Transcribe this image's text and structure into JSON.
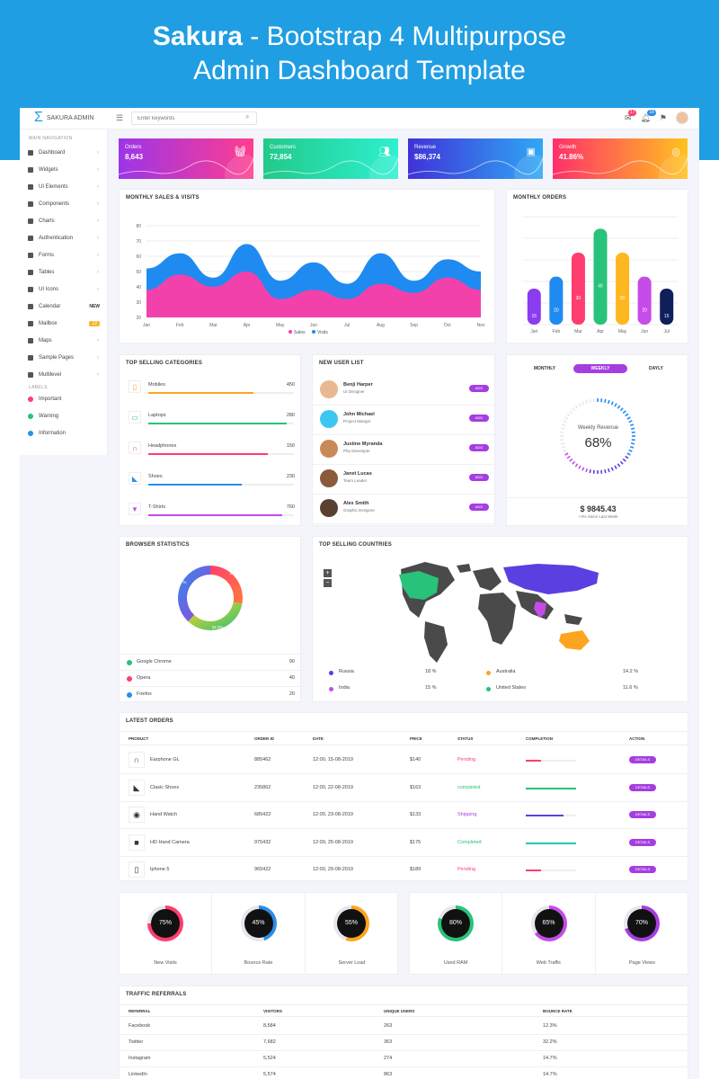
{
  "banner": {
    "title_bold": "Sakura",
    "title_rest": " - Bootstrap 4 Multipurpose",
    "title_line2": "Admin Dashboard Template"
  },
  "topbar": {
    "brand": "SAKURA ADMIN",
    "search_placeholder": "Enter keywords",
    "mail_badge": "17",
    "bell_badge": "16"
  },
  "sidebar": {
    "section_main": "MAIN NAVIGATION",
    "items": [
      {
        "label": "Dashboard",
        "icon": "home-icon",
        "arrow": "‹"
      },
      {
        "label": "Widgets",
        "icon": "widgets-icon",
        "arrow": "‹"
      },
      {
        "label": "UI Elements",
        "icon": "ui-icon",
        "arrow": "‹"
      },
      {
        "label": "Components",
        "icon": "components-icon",
        "arrow": "‹"
      },
      {
        "label": "Charts",
        "icon": "chart-icon",
        "arrow": "‹"
      },
      {
        "label": "Authentication",
        "icon": "lock-icon",
        "arrow": "‹"
      },
      {
        "label": "Forms",
        "icon": "forms-icon",
        "arrow": "‹"
      },
      {
        "label": "Tables",
        "icon": "table-icon",
        "arrow": "‹"
      },
      {
        "label": "UI Icons",
        "icon": "icons-icon",
        "arrow": "‹"
      },
      {
        "label": "Calendar",
        "icon": "calendar-icon",
        "tag": "NEW"
      },
      {
        "label": "Mailbox",
        "icon": "mail-icon",
        "count": "12"
      },
      {
        "label": "Maps",
        "icon": "map-icon",
        "arrow": "‹"
      },
      {
        "label": "Sample Pages",
        "icon": "pages-icon",
        "arrow": "‹"
      },
      {
        "label": "Multilevel",
        "icon": "share-icon",
        "arrow": "‹"
      }
    ],
    "section_labels": "LABELS",
    "labels": [
      {
        "label": "Important",
        "color": "#ff3d6e"
      },
      {
        "label": "Warning",
        "color": "#29c27a"
      },
      {
        "label": "Information",
        "color": "#2c8de6"
      }
    ]
  },
  "stats": [
    {
      "label": "Orders",
      "value": "8,643",
      "icon": "basket-icon",
      "from": "#9b35e8",
      "to": "#ff3d8f"
    },
    {
      "label": "Customers",
      "value": "72,854",
      "icon": "users-icon",
      "from": "#22c98a",
      "to": "#2ef0d0"
    },
    {
      "label": "Revenue",
      "value": "$86,374",
      "icon": "wallet-icon",
      "from": "#4032d8",
      "to": "#2fa8f5"
    },
    {
      "label": "Growth",
      "value": "41.86%",
      "icon": "growth-icon",
      "from": "#ff2f6b",
      "to": "#ffc21f"
    }
  ],
  "sales_chart": {
    "title": "MONTHLY SALES & VISITS",
    "legend": [
      "Sales",
      "Visits"
    ]
  },
  "chart_data": [
    {
      "type": "area",
      "title": "MONTHLY SALES & VISITS",
      "categories": [
        "Jan",
        "Feb",
        "Mar",
        "Apr",
        "May",
        "Jun",
        "Jul",
        "Aug",
        "Sep",
        "Oct",
        "Nov"
      ],
      "ylim": [
        20,
        80
      ],
      "yticks": [
        20,
        30,
        40,
        50,
        60,
        70,
        80
      ],
      "series": [
        {
          "name": "Sales",
          "color": "#ff3da8",
          "values": [
            38,
            48,
            40,
            50,
            32,
            38,
            32,
            42,
            36,
            46,
            38
          ]
        },
        {
          "name": "Visits",
          "color": "#1f8bf0",
          "values": [
            52,
            62,
            46,
            68,
            44,
            56,
            42,
            62,
            44,
            58,
            50
          ]
        }
      ]
    },
    {
      "type": "bar",
      "title": "MONTHLY ORDERS",
      "categories": [
        "Jan",
        "Feb",
        "Mar",
        "Apr",
        "May",
        "Jun",
        "Jul"
      ],
      "values": [
        15,
        20,
        30,
        40,
        30,
        20,
        15
      ],
      "ylim": [
        0,
        45
      ],
      "colors": [
        "#8a3cf0",
        "#1f8bf0",
        "#ff3d6e",
        "#29c27a",
        "#ffb71f",
        "#c54ce8",
        "#0f1f5c"
      ]
    },
    {
      "type": "pie",
      "title": "BROWSER STATISTICS",
      "labels": [
        "Google Chrome",
        "Opera",
        "Firefox"
      ],
      "values": [
        27.7,
        34.0,
        37.7
      ]
    }
  ],
  "categories": {
    "title": "TOP SELLING CATEGORIES",
    "items": [
      {
        "name": "Mobiles",
        "value": "450",
        "pct": 0.72,
        "color": "#ffa41f",
        "icon": "phone-icon"
      },
      {
        "name": "Laptops",
        "value": "280",
        "pct": 0.95,
        "color": "#29c27a",
        "icon": "laptop-icon"
      },
      {
        "name": "Headphones",
        "value": "150",
        "pct": 0.82,
        "color": "#ff3d6e",
        "icon": "headphones-icon"
      },
      {
        "name": "Shoes",
        "value": "230",
        "pct": 0.64,
        "color": "#2c8de6",
        "icon": "shoe-icon"
      },
      {
        "name": "T-Shirts",
        "value": "760",
        "pct": 0.92,
        "color": "#c54ce8",
        "icon": "tshirt-icon"
      }
    ]
  },
  "users": {
    "title": "NEW USER LIST",
    "add_label": "ADD",
    "items": [
      {
        "name": "Benji Harper",
        "role": "UI Designer"
      },
      {
        "name": "John Michael",
        "role": "Project Manger"
      },
      {
        "name": "Justine Myranda",
        "role": "Php Developer"
      },
      {
        "name": "Janet Lucas",
        "role": "Team Leader"
      },
      {
        "name": "Alex Smith",
        "role": "Graphic Designer"
      }
    ]
  },
  "revenue": {
    "tabs": [
      "MONTHLY",
      "WEEKLY",
      "DAYLY"
    ],
    "gauge_label": "Weekly Revenue",
    "gauge_value": "68%",
    "gauge_pct": 0.68,
    "amount": "$ 9845.43",
    "since": "+3% Since Last Week"
  },
  "browsers": {
    "title": "BROWSER STATISTICS",
    "slice_labels": [
      "27.7%",
      "37.7%",
      "34.0%"
    ],
    "items": [
      {
        "name": "Google Chrome",
        "value": "90",
        "color": "#29c27a"
      },
      {
        "name": "Opera",
        "value": "40",
        "color": "#ff3d6e"
      },
      {
        "name": "Firefox",
        "value": "20",
        "color": "#2c8de6"
      }
    ]
  },
  "countries": {
    "title": "TOP SELLING COUNTRIES",
    "zoom_in": "+",
    "zoom_out": "−",
    "items": [
      {
        "name": "Russia",
        "value": "18 %",
        "color": "#5b3fe0"
      },
      {
        "name": "Australia",
        "value": "14.2 %",
        "color": "#ffa41f"
      },
      {
        "name": "India",
        "value": "15 %",
        "color": "#c54ce8"
      },
      {
        "name": "United States",
        "value": "11.6 %",
        "color": "#29c27a"
      }
    ]
  },
  "orders": {
    "title": "LATEST ORDERS",
    "headers": [
      "PRODUCT",
      "ORDER ID",
      "DATE",
      "PRICE",
      "STATUS",
      "COMPLETION",
      "ACTION"
    ],
    "details_label": "DETAILS",
    "rows": [
      {
        "product": "Earphone GL",
        "id": "885462",
        "date": "12:00, 15-08-2019",
        "price": "$140",
        "status": "Pending",
        "cls": "pending",
        "pct": 0.3,
        "color": "#ff3d6e",
        "icon": "headphones-icon"
      },
      {
        "product": "Clasic Shoes",
        "id": "235862",
        "date": "12:00, 22-08-2019",
        "price": "$163",
        "status": "completed",
        "cls": "completed",
        "pct": 1.0,
        "color": "#29c27a",
        "icon": "shoe-icon"
      },
      {
        "product": "Hand Watch",
        "id": "685422",
        "date": "12:00, 23-08-2019",
        "price": "$133",
        "status": "Shipping",
        "cls": "shipping",
        "pct": 0.75,
        "color": "#5b3fe0",
        "icon": "watch-icon"
      },
      {
        "product": "HD Hand Camera",
        "id": "975432",
        "date": "12:00, 25-08-2019",
        "price": "$175",
        "status": "Completed",
        "cls": "completed",
        "pct": 1.0,
        "color": "#1fcbb8",
        "icon": "camera-icon"
      },
      {
        "product": "Iphone 5",
        "id": "965422",
        "date": "12:00, 29-08-2019",
        "price": "$189",
        "status": "Pending",
        "cls": "pending",
        "pct": 0.3,
        "color": "#ff3d6e",
        "icon": "phone-icon"
      }
    ]
  },
  "gauges": [
    {
      "label": "New Visits",
      "value": "75%",
      "pct": 0.75,
      "color": "#ff3d6e"
    },
    {
      "label": "Bounce Rate",
      "value": "45%",
      "pct": 0.45,
      "color": "#2c8de6"
    },
    {
      "label": "Server Load",
      "value": "55%",
      "pct": 0.55,
      "color": "#ffa41f"
    },
    {
      "label": "Used RAM",
      "value": "80%",
      "pct": 0.8,
      "color": "#29c27a"
    },
    {
      "label": "Web Traffic",
      "value": "65%",
      "pct": 0.65,
      "color": "#c54ce8"
    },
    {
      "label": "Page Views",
      "value": "70%",
      "pct": 0.7,
      "color": "#a53ee0"
    }
  ],
  "traffic": {
    "title": "TRAFFIC REFERRALS",
    "headers": [
      "REFERRAL",
      "VISITORS",
      "UNIQUE USERS",
      "BOUNCE RATE"
    ],
    "rows": [
      [
        "Facebook",
        "8,584",
        "263",
        "12.3%"
      ],
      [
        "Twitter",
        "7,682",
        "363",
        "32.2%"
      ],
      [
        "Instagram",
        "5,524",
        "274",
        "14.7%"
      ],
      [
        "LinkedIn",
        "5,574",
        "863",
        "14.7%"
      ]
    ]
  }
}
